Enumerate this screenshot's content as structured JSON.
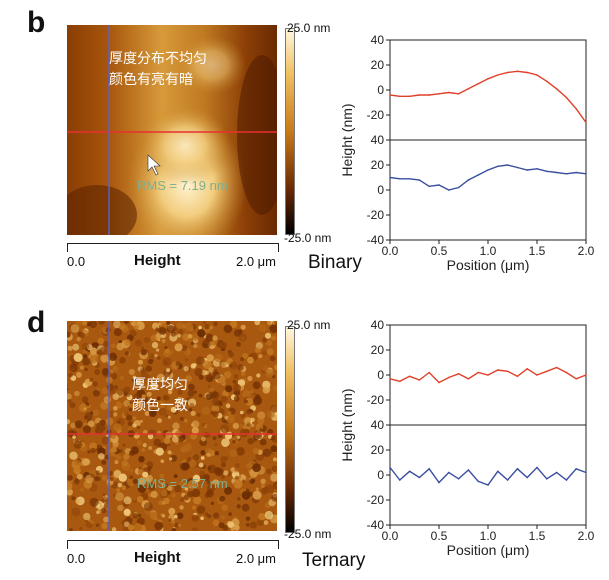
{
  "panels": [
    {
      "letter": "b",
      "colorbar_top": "25.0 nm",
      "colorbar_bottom": "-25.0 nm",
      "scale_start": "0.0",
      "scale_title": "Height",
      "scale_end": "2.0 μm",
      "sample": "Binary",
      "note_line1": "厚度分布不均匀",
      "note_line2": "颜色有亮有暗",
      "rms": "RMS = 7.19 nm"
    },
    {
      "letter": "d",
      "colorbar_top": "25.0 nm",
      "colorbar_bottom": "-25.0 nm",
      "scale_start": "0.0",
      "scale_title": "Height",
      "scale_end": "2.0 μm",
      "sample": "Ternary",
      "note_line1": "厚度均匀",
      "note_line2": "颜色一致",
      "rms": "RMS = 2.57 nm"
    }
  ],
  "chart_data": [
    {
      "type": "line",
      "panel": "b",
      "xlabel": "Position (μm)",
      "ylabel": "Height (nm)",
      "xlim": [
        0.0,
        2.0
      ],
      "xticks": [
        "0.0",
        "0.5",
        "1.0",
        "1.5",
        "2.0"
      ],
      "top": {
        "ylim": [
          -40,
          40
        ],
        "yticks": [
          "40",
          "20",
          "0",
          "-20",
          "-40"
        ],
        "color": "#e0402a",
        "x": [
          0.0,
          0.1,
          0.2,
          0.3,
          0.4,
          0.5,
          0.6,
          0.7,
          0.8,
          0.9,
          1.0,
          1.1,
          1.2,
          1.3,
          1.4,
          1.5,
          1.6,
          1.7,
          1.8,
          1.9,
          2.0
        ],
        "y": [
          -4,
          -5,
          -5,
          -4,
          -4,
          -3,
          -2,
          -3,
          1,
          5,
          9,
          12,
          14,
          15,
          14,
          12,
          7,
          1,
          -6,
          -15,
          -26
        ]
      },
      "bottom": {
        "ylim": [
          -40,
          40
        ],
        "yticks": [
          "40",
          "20",
          "0",
          "-20",
          "-40"
        ],
        "color": "#3a4fa0",
        "x": [
          0.0,
          0.1,
          0.2,
          0.3,
          0.4,
          0.5,
          0.6,
          0.7,
          0.8,
          0.9,
          1.0,
          1.1,
          1.2,
          1.3,
          1.4,
          1.5,
          1.6,
          1.7,
          1.8,
          1.9,
          2.0
        ],
        "y": [
          10,
          9,
          9,
          8,
          3,
          4,
          0,
          2,
          8,
          12,
          16,
          19,
          20,
          18,
          16,
          17,
          15,
          14,
          13,
          14,
          13
        ]
      }
    },
    {
      "type": "line",
      "panel": "d",
      "xlabel": "Position (μm)",
      "ylabel": "Height (nm)",
      "xlim": [
        0.0,
        2.0
      ],
      "xticks": [
        "0.0",
        "0.5",
        "1.0",
        "1.5",
        "2.0"
      ],
      "top": {
        "ylim": [
          -40,
          40
        ],
        "yticks": [
          "40",
          "20",
          "0",
          "-20",
          "-40"
        ],
        "color": "#e0402a",
        "x": [
          0.0,
          0.1,
          0.2,
          0.3,
          0.4,
          0.5,
          0.6,
          0.7,
          0.8,
          0.9,
          1.0,
          1.1,
          1.2,
          1.3,
          1.4,
          1.5,
          1.6,
          1.7,
          1.8,
          1.9,
          2.0
        ],
        "y": [
          -3,
          -5,
          -1,
          -4,
          2,
          -6,
          -2,
          1,
          -3,
          2,
          0,
          4,
          3,
          -1,
          5,
          0,
          3,
          6,
          2,
          -3,
          0
        ]
      },
      "bottom": {
        "ylim": [
          -40,
          40
        ],
        "yticks": [
          "40",
          "20",
          "0",
          "-20",
          "-40"
        ],
        "color": "#3a4fa0",
        "x": [
          0.0,
          0.1,
          0.2,
          0.3,
          0.4,
          0.5,
          0.6,
          0.7,
          0.8,
          0.9,
          1.0,
          1.1,
          1.2,
          1.3,
          1.4,
          1.5,
          1.6,
          1.7,
          1.8,
          1.9,
          2.0
        ],
        "y": [
          6,
          -4,
          3,
          -2,
          5,
          -6,
          2,
          -3,
          4,
          -5,
          -8,
          3,
          -4,
          5,
          -2,
          6,
          -3,
          2,
          -4,
          5,
          2
        ]
      }
    }
  ]
}
